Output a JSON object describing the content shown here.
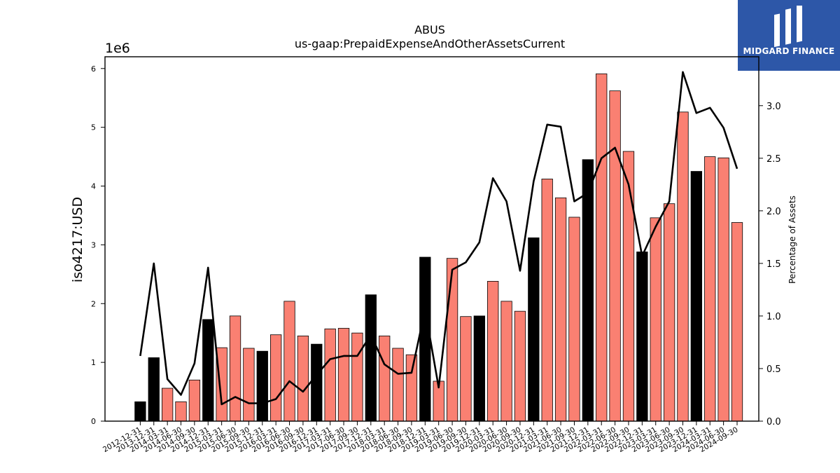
{
  "brand": {
    "name": "MIDGARD FINANCE",
    "background": "#2d57a8"
  },
  "chart_data": {
    "type": "bar",
    "title": "ABUS",
    "subtitle": "us-gaap:PrepaidExpenseAndOtherAssetsCurrent",
    "ylabel": "iso4217:USD",
    "y_offset_label": "1e6",
    "y2label": "Percentage of Assets",
    "ylim": [
      0,
      6200000
    ],
    "y2lim": [
      0,
      3.465
    ],
    "yticks": [
      0,
      1,
      2,
      3,
      4,
      5,
      6
    ],
    "y2ticks": [
      "0.0",
      "0.5",
      "1.0",
      "1.5",
      "2.0",
      "2.5",
      "3.0"
    ],
    "grid": false,
    "colors": {
      "annual": "#000000",
      "quarterly": "#fa8072",
      "line": "#000000"
    },
    "categories": [
      "2012-12-31",
      "2013-12-31",
      "2014-03-31",
      "2014-06-30",
      "2014-09-30",
      "2014-12-31",
      "2015-03-31",
      "2015-06-30",
      "2015-09-30",
      "2015-12-31",
      "2016-03-31",
      "2016-06-30",
      "2016-09-30",
      "2016-12-31",
      "2017-03-31",
      "2017-06-30",
      "2017-09-30",
      "2017-12-31",
      "2018-03-31",
      "2018-06-30",
      "2018-09-30",
      "2018-12-31",
      "2019-03-31",
      "2019-06-30",
      "2019-09-30",
      "2019-12-31",
      "2020-03-31",
      "2020-06-30",
      "2020-09-30",
      "2020-12-31",
      "2021-03-31",
      "2021-06-30",
      "2021-09-30",
      "2021-12-31",
      "2022-03-31",
      "2022-06-30",
      "2022-09-30",
      "2022-12-31",
      "2023-03-31",
      "2023-06-30",
      "2023-09-30",
      "2023-12-31",
      "2024-03-31",
      "2024-06-30",
      "2024-09-30"
    ],
    "period": [
      "annual",
      "annual",
      "quarterly",
      "quarterly",
      "quarterly",
      "annual",
      "quarterly",
      "quarterly",
      "quarterly",
      "annual",
      "quarterly",
      "quarterly",
      "quarterly",
      "annual",
      "quarterly",
      "quarterly",
      "quarterly",
      "annual",
      "quarterly",
      "quarterly",
      "quarterly",
      "annual",
      "quarterly",
      "quarterly",
      "quarterly",
      "annual",
      "quarterly",
      "quarterly",
      "quarterly",
      "annual",
      "quarterly",
      "quarterly",
      "quarterly",
      "annual",
      "quarterly",
      "quarterly",
      "quarterly",
      "annual",
      "quarterly",
      "quarterly",
      "quarterly",
      "annual",
      "quarterly",
      "quarterly",
      "quarterly"
    ],
    "series": [
      {
        "name": "",
        "axis": "left",
        "kind": "bar",
        "values": [
          330000,
          1080000,
          560000,
          330000,
          700000,
          1730000,
          1250000,
          1790000,
          1240000,
          1190000,
          1470000,
          2040000,
          1450000,
          1310000,
          1570000,
          1580000,
          1500000,
          2150000,
          1450000,
          1240000,
          1130000,
          2790000,
          680000,
          2770000,
          1780000,
          1790000,
          2380000,
          2040000,
          1870000,
          3120000,
          4120000,
          3800000,
          3470000,
          4450000,
          5910000,
          5620000,
          4590000,
          2880000,
          3460000,
          3700000,
          5260000,
          4250000,
          4500000,
          4480000,
          3380000
        ]
      },
      {
        "name": "",
        "axis": "right",
        "kind": "line",
        "values": [
          0.62,
          1.5,
          0.4,
          0.25,
          0.55,
          1.46,
          0.16,
          0.23,
          0.17,
          0.17,
          0.21,
          0.38,
          0.28,
          0.44,
          0.59,
          0.62,
          0.62,
          0.82,
          0.54,
          0.45,
          0.46,
          1.06,
          0.32,
          1.44,
          1.51,
          1.7,
          2.31,
          2.09,
          1.43,
          2.28,
          2.82,
          2.8,
          2.09,
          2.17,
          2.5,
          2.6,
          2.25,
          1.57,
          1.85,
          2.09,
          3.32,
          2.93,
          2.98,
          2.79,
          2.4
        ]
      }
    ]
  }
}
